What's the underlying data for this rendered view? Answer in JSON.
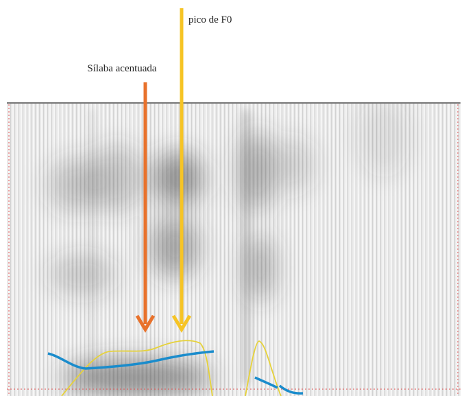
{
  "annotations": {
    "stressed_syllable": "Sílaba acentuada",
    "f0_peak": "pico de F0"
  }
}
